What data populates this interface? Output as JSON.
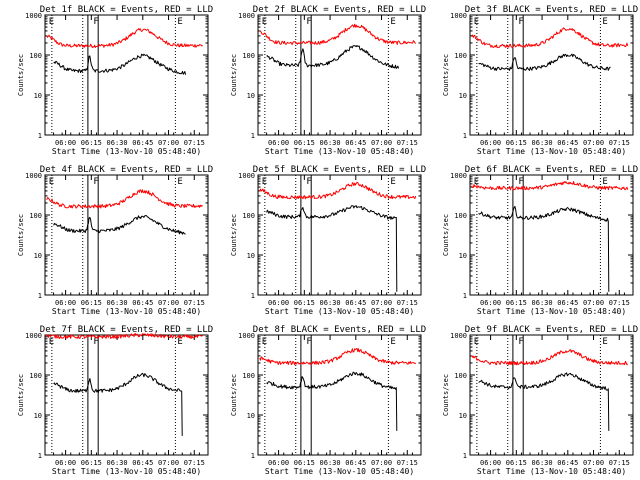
{
  "chart_data": [
    {
      "type": "line",
      "title": "Det 1f BLACK = Events, RED = LLD",
      "xlabel": "Start Time (13-Nov-10 05:48:40)",
      "ylabel": "Counts/sec",
      "yscale": "log",
      "ylim": [
        1,
        1000
      ],
      "xlim_minutes_after_0548": [
        0,
        95
      ],
      "xtick_labels": [
        "06:00",
        "06:15",
        "06:30",
        "06:45",
        "07:00",
        "07:15"
      ],
      "ytick_labels": [
        "1",
        "10",
        "100",
        "1000"
      ],
      "markers": [
        {
          "label": "E",
          "x": "05:49"
        },
        {
          "label": "F",
          "x": "06:15"
        },
        {
          "label": "E",
          "x": "07:04"
        }
      ],
      "dotted_lines": [
        "05:52",
        "06:10",
        "07:04"
      ],
      "solid_lines": [
        "06:13",
        "06:19"
      ],
      "series": [
        {
          "color": "#ff0000",
          "base": 170,
          "start": 290,
          "peak": 430,
          "peak_time": "06:45",
          "end": 175,
          "t0": "05:49",
          "t1": "07:20"
        },
        {
          "color": "#000000",
          "base": 40,
          "start": 65,
          "spike": 90,
          "peak": 95,
          "peak_time": "06:45",
          "end": 35,
          "t0": "05:53",
          "t1": "07:10"
        }
      ]
    },
    {
      "type": "line",
      "title": "Det 2f BLACK = Events, RED = LLD",
      "xlabel": "Start Time (13-Nov-10 05:48:40)",
      "ylabel": "Counts/sec",
      "yscale": "log",
      "ylim": [
        1,
        1000
      ],
      "xtick_labels": [
        "06:00",
        "06:15",
        "06:30",
        "06:45",
        "07:00",
        "07:15"
      ],
      "ytick_labels": [
        "1",
        "10",
        "100",
        "1000"
      ],
      "markers": [
        {
          "label": "E",
          "x": "05:49"
        },
        {
          "label": "F",
          "x": "06:15"
        },
        {
          "label": "E",
          "x": "07:04"
        }
      ],
      "dotted_lines": [
        "05:52",
        "06:10",
        "07:04"
      ],
      "solid_lines": [
        "06:13",
        "06:19"
      ],
      "series": [
        {
          "color": "#ff0000",
          "base": 200,
          "start": 380,
          "peak": 550,
          "peak_time": "06:45",
          "end": 210,
          "t0": "05:49",
          "t1": "07:20"
        },
        {
          "color": "#000000",
          "base": 55,
          "start": 90,
          "spike": 140,
          "peak": 160,
          "peak_time": "06:45",
          "end": 50,
          "t0": "05:53",
          "t1": "07:10"
        }
      ]
    },
    {
      "type": "line",
      "title": "Det 3f BLACK = Events, RED = LLD",
      "xlabel": "Start Time (13-Nov-10 05:48:40)",
      "ylabel": "Counts/sec",
      "yscale": "log",
      "ylim": [
        1,
        1000
      ],
      "xtick_labels": [
        "06:00",
        "06:15",
        "06:30",
        "06:45",
        "07:00",
        "07:15"
      ],
      "ytick_labels": [
        "1",
        "10",
        "100",
        "1000"
      ],
      "markers": [
        {
          "label": "E",
          "x": "05:49"
        },
        {
          "label": "F",
          "x": "06:15"
        },
        {
          "label": "E",
          "x": "07:04"
        }
      ],
      "dotted_lines": [
        "05:52",
        "06:10",
        "07:04"
      ],
      "solid_lines": [
        "06:13",
        "06:19"
      ],
      "series": [
        {
          "color": "#ff0000",
          "base": 170,
          "start": 300,
          "peak": 460,
          "peak_time": "06:45",
          "end": 180,
          "t0": "05:49",
          "t1": "07:20"
        },
        {
          "color": "#000000",
          "base": 45,
          "start": 60,
          "spike": 90,
          "peak": 100,
          "peak_time": "06:45",
          "end": 45,
          "t0": "05:53",
          "t1": "07:10"
        }
      ]
    },
    {
      "type": "line",
      "title": "Det 4f BLACK = Events, RED = LLD",
      "xlabel": "Start Time (13-Nov-10 05:48:40)",
      "ylabel": "Counts/sec",
      "yscale": "log",
      "ylim": [
        1,
        1000
      ],
      "xtick_labels": [
        "06:00",
        "06:15",
        "06:30",
        "06:45",
        "07:00",
        "07:15"
      ],
      "ytick_labels": [
        "1",
        "10",
        "100",
        "1000"
      ],
      "markers": [
        {
          "label": "E",
          "x": "05:49"
        },
        {
          "label": "F",
          "x": "06:15"
        },
        {
          "label": "E",
          "x": "07:04"
        }
      ],
      "dotted_lines": [
        "05:52",
        "06:10",
        "07:04"
      ],
      "solid_lines": [
        "06:13",
        "06:19"
      ],
      "series": [
        {
          "color": "#ff0000",
          "base": 165,
          "start": 250,
          "peak": 400,
          "peak_time": "06:45",
          "end": 170,
          "t0": "05:49",
          "t1": "07:20"
        },
        {
          "color": "#000000",
          "base": 40,
          "start": 60,
          "spike": 85,
          "peak": 90,
          "peak_time": "06:45",
          "end": 35,
          "t0": "05:53",
          "t1": "07:10"
        }
      ]
    },
    {
      "type": "line",
      "title": "Det 5f BLACK = Events, RED = LLD",
      "xlabel": "Start Time (13-Nov-10 05:48:40)",
      "ylabel": "Counts/sec",
      "yscale": "log",
      "ylim": [
        1,
        1000
      ],
      "xtick_labels": [
        "06:00",
        "06:15",
        "06:30",
        "06:45",
        "07:00",
        "07:15"
      ],
      "ytick_labels": [
        "1",
        "10",
        "100",
        "1000"
      ],
      "markers": [
        {
          "label": "E",
          "x": "05:49"
        },
        {
          "label": "F",
          "x": "06:15"
        },
        {
          "label": "E",
          "x": "07:04"
        }
      ],
      "dotted_lines": [
        "05:52",
        "06:10",
        "07:04"
      ],
      "solid_lines": [
        "06:13",
        "06:19"
      ],
      "series": [
        {
          "color": "#ff0000",
          "base": 280,
          "start": 420,
          "peak": 600,
          "peak_time": "06:45",
          "end": 280,
          "t0": "05:49",
          "t1": "07:20"
        },
        {
          "color": "#000000",
          "base": 90,
          "start": 120,
          "spike": 160,
          "peak": 160,
          "peak_time": "06:45",
          "end": 80,
          "t0": "05:53",
          "t1": "07:09",
          "drop_to": 1.2
        }
      ]
    },
    {
      "type": "line",
      "title": "Det 6f BLACK = Events, RED = LLD",
      "xlabel": "Start Time (13-Nov-10 05:48:40)",
      "ylabel": "Counts/sec",
      "yscale": "log",
      "ylim": [
        1,
        1000
      ],
      "xtick_labels": [
        "06:00",
        "06:15",
        "06:30",
        "06:45",
        "07:00",
        "07:15"
      ],
      "ytick_labels": [
        "1",
        "10",
        "100",
        "1000"
      ],
      "markers": [
        {
          "label": "E",
          "x": "05:49"
        },
        {
          "label": "F",
          "x": "06:15"
        },
        {
          "label": "E",
          "x": "07:04"
        }
      ],
      "dotted_lines": [
        "05:52",
        "06:10",
        "07:04"
      ],
      "solid_lines": [
        "06:13",
        "06:19"
      ],
      "series": [
        {
          "color": "#ff0000",
          "base": 470,
          "start": 540,
          "peak": 650,
          "peak_time": "06:45",
          "end": 470,
          "t0": "05:49",
          "t1": "07:20"
        },
        {
          "color": "#000000",
          "base": 85,
          "start": 110,
          "spike": 150,
          "peak": 140,
          "peak_time": "06:45",
          "end": 75,
          "t0": "05:53",
          "t1": "07:09",
          "drop_to": 1.2
        }
      ]
    },
    {
      "type": "line",
      "title": "Det 7f BLACK = Events, RED = LLD",
      "xlabel": "Start Time (13-Nov-10 05:48:40)",
      "ylabel": "Counts/sec",
      "yscale": "log",
      "ylim": [
        1,
        1000
      ],
      "xtick_labels": [
        "06:00",
        "06:15",
        "06:30",
        "06:45",
        "07:00",
        "07:15"
      ],
      "ytick_labels": [
        "1",
        "10",
        "100",
        "1000"
      ],
      "markers": [
        {
          "label": "E",
          "x": "05:49"
        },
        {
          "label": "F",
          "x": "06:15"
        },
        {
          "label": "E",
          "x": "07:04"
        }
      ],
      "dotted_lines": [
        "05:52",
        "06:10",
        "07:04"
      ],
      "solid_lines": [
        "06:13",
        "06:19"
      ],
      "series": [
        {
          "color": "#ff0000",
          "base": 900,
          "start": 950,
          "peak": 1000,
          "peak_time": "06:45",
          "end": 900,
          "t0": "05:49",
          "t1": "07:20"
        },
        {
          "color": "#000000",
          "base": 40,
          "start": 60,
          "spike": 80,
          "peak": 100,
          "peak_time": "06:45",
          "end": 40,
          "t0": "05:53",
          "t1": "07:08",
          "drop_to": 3
        }
      ]
    },
    {
      "type": "line",
      "title": "Det 8f BLACK = Events, RED = LLD",
      "xlabel": "Start Time (13-Nov-10 05:48:40)",
      "ylabel": "Counts/sec",
      "yscale": "log",
      "ylim": [
        1,
        1000
      ],
      "xtick_labels": [
        "06:00",
        "06:15",
        "06:30",
        "06:45",
        "07:00",
        "07:15"
      ],
      "ytick_labels": [
        "1",
        "10",
        "100",
        "1000"
      ],
      "markers": [
        {
          "label": "E",
          "x": "05:49"
        },
        {
          "label": "F",
          "x": "06:15"
        },
        {
          "label": "E",
          "x": "07:04"
        }
      ],
      "dotted_lines": [
        "05:52",
        "06:10",
        "07:04"
      ],
      "solid_lines": [
        "06:13",
        "06:19"
      ],
      "series": [
        {
          "color": "#ff0000",
          "base": 200,
          "start": 260,
          "peak": 420,
          "peak_time": "06:45",
          "end": 200,
          "t0": "05:49",
          "t1": "07:20"
        },
        {
          "color": "#000000",
          "base": 50,
          "start": 65,
          "spike": 90,
          "peak": 110,
          "peak_time": "06:45",
          "end": 45,
          "t0": "05:53",
          "t1": "07:09",
          "drop_to": 4
        }
      ]
    },
    {
      "type": "line",
      "title": "Det 9f BLACK = Events, RED = LLD",
      "xlabel": "Start Time (13-Nov-10 05:48:40)",
      "ylabel": "Counts/sec",
      "yscale": "log",
      "ylim": [
        1,
        1000
      ],
      "xtick_labels": [
        "06:00",
        "06:15",
        "06:30",
        "06:45",
        "07:00",
        "07:15"
      ],
      "ytick_labels": [
        "1",
        "10",
        "100",
        "1000"
      ],
      "markers": [
        {
          "label": "E",
          "x": "05:49"
        },
        {
          "label": "F",
          "x": "06:15"
        },
        {
          "label": "E",
          "x": "07:04"
        }
      ],
      "dotted_lines": [
        "05:52",
        "06:10",
        "07:04"
      ],
      "solid_lines": [
        "06:13",
        "06:19"
      ],
      "series": [
        {
          "color": "#ff0000",
          "base": 200,
          "start": 280,
          "peak": 400,
          "peak_time": "06:45",
          "end": 200,
          "t0": "05:49",
          "t1": "07:20"
        },
        {
          "color": "#000000",
          "base": 50,
          "start": 70,
          "spike": 90,
          "peak": 105,
          "peak_time": "06:45",
          "end": 45,
          "t0": "05:53",
          "t1": "07:09",
          "drop_to": 4
        }
      ]
    }
  ]
}
